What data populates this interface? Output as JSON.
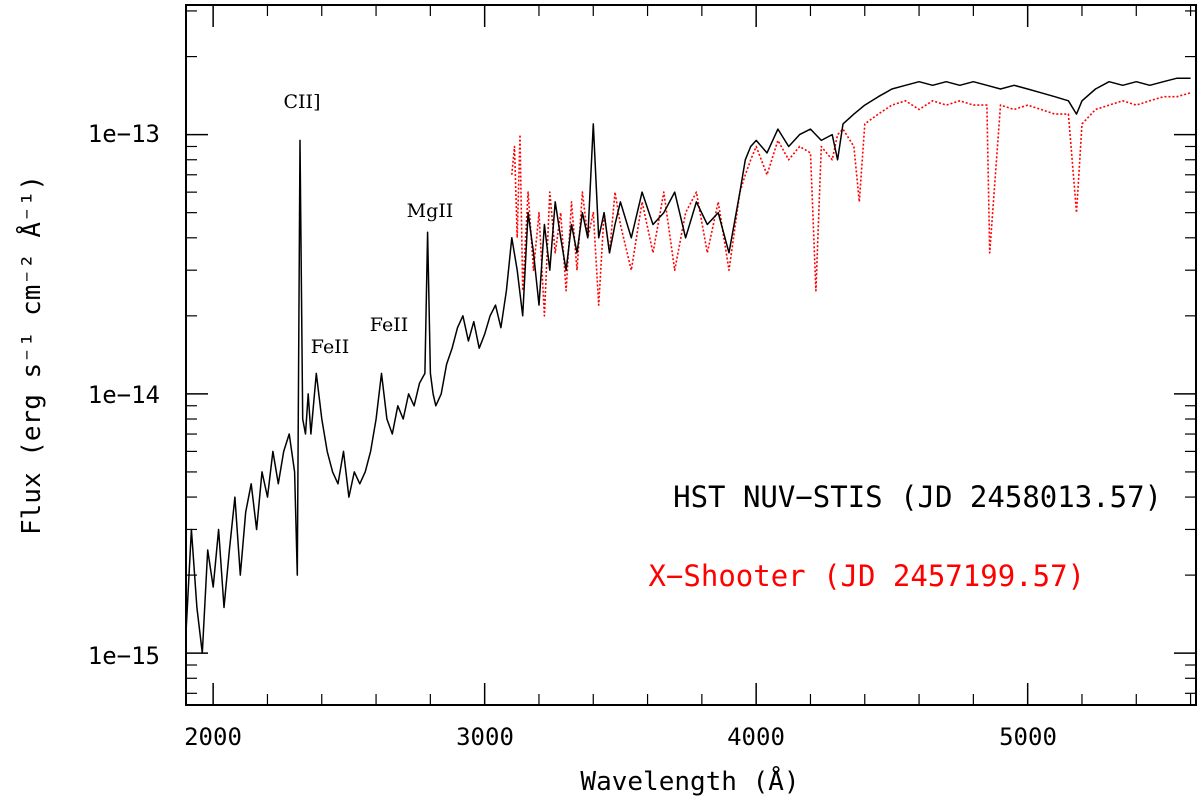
{
  "chart_data": {
    "type": "line",
    "xlabel": "Wavelength (Å)",
    "ylabel": "Flux (erg s⁻¹ cm⁻² Å⁻¹)",
    "xlim": [
      1900,
      5620
    ],
    "ylim_log10": [
      -15.2,
      -12.5
    ],
    "yscale": "log",
    "x_ticks": [
      2000,
      3000,
      4000,
      5000
    ],
    "x_tick_labels": [
      "2000",
      "3000",
      "4000",
      "5000"
    ],
    "y_ticks": [
      1e-15,
      1e-14,
      1e-13
    ],
    "y_tick_labels": [
      "1e−15",
      "1e−14",
      "1e−13"
    ],
    "series": [
      {
        "name": "HST NUV−STIS (JD 2458013.57)",
        "color": "#000000",
        "style": "solid",
        "x": [
          1900,
          1920,
          1940,
          1960,
          1980,
          2000,
          2020,
          2040,
          2060,
          2080,
          2100,
          2120,
          2140,
          2160,
          2180,
          2200,
          2220,
          2240,
          2260,
          2280,
          2300,
          2310,
          2320,
          2330,
          2340,
          2350,
          2360,
          2380,
          2400,
          2420,
          2440,
          2460,
          2480,
          2500,
          2520,
          2540,
          2560,
          2580,
          2600,
          2620,
          2640,
          2660,
          2680,
          2700,
          2720,
          2740,
          2760,
          2780,
          2790,
          2800,
          2810,
          2820,
          2840,
          2860,
          2880,
          2900,
          2920,
          2940,
          2960,
          2980,
          3000,
          3020,
          3040,
          3060,
          3080,
          3100,
          3120,
          3140,
          3160,
          3180,
          3200,
          3220,
          3240,
          3260,
          3280,
          3300,
          3320,
          3340,
          3360,
          3380,
          3400,
          3420,
          3440,
          3460,
          3480,
          3500,
          3540,
          3580,
          3620,
          3660,
          3700,
          3740,
          3780,
          3820,
          3860,
          3900,
          3940,
          3960,
          3980,
          4000,
          4040,
          4080,
          4120,
          4160,
          4200,
          4240,
          4280,
          4300,
          4320,
          4360,
          4400,
          4450,
          4500,
          4550,
          4600,
          4650,
          4700,
          4750,
          4800,
          4850,
          4900,
          4950,
          5000,
          5050,
          5100,
          5150,
          5180,
          5200,
          5250,
          5300,
          5350,
          5400,
          5450,
          5500,
          5550,
          5600
        ],
        "y": [
          1.2e-15,
          3e-15,
          1.5e-15,
          1e-15,
          2.5e-15,
          1.8e-15,
          3e-15,
          1.5e-15,
          2.5e-15,
          4e-15,
          2e-15,
          3.5e-15,
          4.5e-15,
          3e-15,
          5e-15,
          4e-15,
          6e-15,
          4.5e-15,
          6e-15,
          7e-15,
          5e-15,
          2e-15,
          9.5e-14,
          8e-15,
          7e-15,
          1e-14,
          7e-15,
          1.2e-14,
          8e-15,
          6e-15,
          5e-15,
          4.5e-15,
          6e-15,
          4e-15,
          5e-15,
          4.5e-15,
          5e-15,
          6e-15,
          8e-15,
          1.2e-14,
          8e-15,
          7e-15,
          9e-15,
          8e-15,
          1e-14,
          9e-15,
          1.1e-14,
          1.2e-14,
          4.2e-14,
          1.2e-14,
          1e-14,
          9e-15,
          1e-14,
          1.3e-14,
          1.5e-14,
          1.8e-14,
          2e-14,
          1.6e-14,
          1.9e-14,
          1.5e-14,
          1.7e-14,
          2e-14,
          2.2e-14,
          1.8e-14,
          2.5e-14,
          4e-14,
          3e-14,
          2e-14,
          5e-14,
          3.5e-14,
          2.2e-14,
          4.5e-14,
          3e-14,
          5.5e-14,
          4e-14,
          3e-14,
          4.5e-14,
          3.5e-14,
          5e-14,
          4e-14,
          1.1e-13,
          4e-14,
          5e-14,
          3.5e-14,
          4.5e-14,
          5.5e-14,
          4e-14,
          6e-14,
          4.5e-14,
          5e-14,
          6e-14,
          4e-14,
          5.5e-14,
          4.5e-14,
          5e-14,
          3.5e-14,
          6e-14,
          8e-14,
          9e-14,
          9.5e-14,
          8.5e-14,
          1.05e-13,
          9e-14,
          1e-13,
          1.05e-13,
          9.5e-14,
          1e-13,
          8e-14,
          1.1e-13,
          1.2e-13,
          1.3e-13,
          1.4e-13,
          1.5e-13,
          1.55e-13,
          1.6e-13,
          1.55e-13,
          1.6e-13,
          1.55e-13,
          1.6e-13,
          1.55e-13,
          1.5e-13,
          1.55e-13,
          1.5e-13,
          1.45e-13,
          1.4e-13,
          1.35e-13,
          1.2e-13,
          1.35e-13,
          1.5e-13,
          1.6e-13,
          1.55e-13,
          1.6e-13,
          1.55e-13,
          1.6e-13,
          1.65e-13,
          1.65e-13
        ]
      },
      {
        "name": "X−Shooter (JD 2457199.57)",
        "color": "#ff0000",
        "style": "dotted",
        "x": [
          3100,
          3110,
          3120,
          3130,
          3140,
          3160,
          3180,
          3200,
          3220,
          3240,
          3260,
          3280,
          3300,
          3320,
          3340,
          3360,
          3380,
          3400,
          3420,
          3440,
          3460,
          3480,
          3500,
          3540,
          3580,
          3620,
          3660,
          3700,
          3740,
          3780,
          3820,
          3860,
          3900,
          3940,
          3960,
          3980,
          4000,
          4040,
          4080,
          4120,
          4160,
          4200,
          4220,
          4240,
          4280,
          4300,
          4320,
          4360,
          4380,
          4400,
          4450,
          4500,
          4550,
          4600,
          4650,
          4700,
          4750,
          4800,
          4850,
          4860,
          4900,
          4950,
          5000,
          5050,
          5100,
          5150,
          5180,
          5200,
          5250,
          5300,
          5350,
          5400,
          5450,
          5500,
          5550,
          5600
        ],
        "y": [
          7e-14,
          9e-14,
          4e-14,
          1e-13,
          2.5e-14,
          6e-14,
          3e-14,
          5e-14,
          2e-14,
          6e-14,
          3.5e-14,
          5e-14,
          2.5e-14,
          5.5e-14,
          3e-14,
          6e-14,
          4e-14,
          5e-14,
          2.2e-14,
          5e-14,
          3.5e-14,
          6e-14,
          4.5e-14,
          3e-14,
          5.5e-14,
          3.5e-14,
          6e-14,
          3e-14,
          5e-14,
          6e-14,
          3.5e-14,
          5.5e-14,
          3e-14,
          6e-14,
          7e-14,
          8e-14,
          9e-14,
          7e-14,
          9.5e-14,
          8e-14,
          9e-14,
          8.5e-14,
          2.5e-14,
          9e-14,
          8e-14,
          1e-13,
          1.05e-13,
          9e-14,
          5.5e-14,
          1.1e-13,
          1.2e-13,
          1.3e-13,
          1.35e-13,
          1.25e-13,
          1.35e-13,
          1.3e-13,
          1.35e-13,
          1.3e-13,
          1.3e-13,
          3.5e-14,
          1.3e-13,
          1.25e-13,
          1.3e-13,
          1.25e-13,
          1.2e-13,
          1.2e-13,
          5e-14,
          1.1e-13,
          1.25e-13,
          1.3e-13,
          1.35e-13,
          1.3e-13,
          1.35e-13,
          1.4e-13,
          1.4e-13,
          1.45e-13
        ]
      }
    ],
    "annotations": [
      {
        "text": "CII]",
        "x": 2330,
        "y": 1.35e-13
      },
      {
        "text": "FeII",
        "x": 2430,
        "y": 1.5e-14
      },
      {
        "text": "FeII",
        "x": 2680,
        "y": 2.2e-14
      },
      {
        "text": "MgII",
        "x": 2800,
        "y": 6.8e-14
      }
    ],
    "legend": [
      {
        "text": "HST NUV−STIS (JD 2458013.57)",
        "color": "#000000"
      },
      {
        "text": "X−Shooter (JD 2457199.57)",
        "color": "#ff0000"
      }
    ],
    "legend_position": "bottom-right"
  }
}
